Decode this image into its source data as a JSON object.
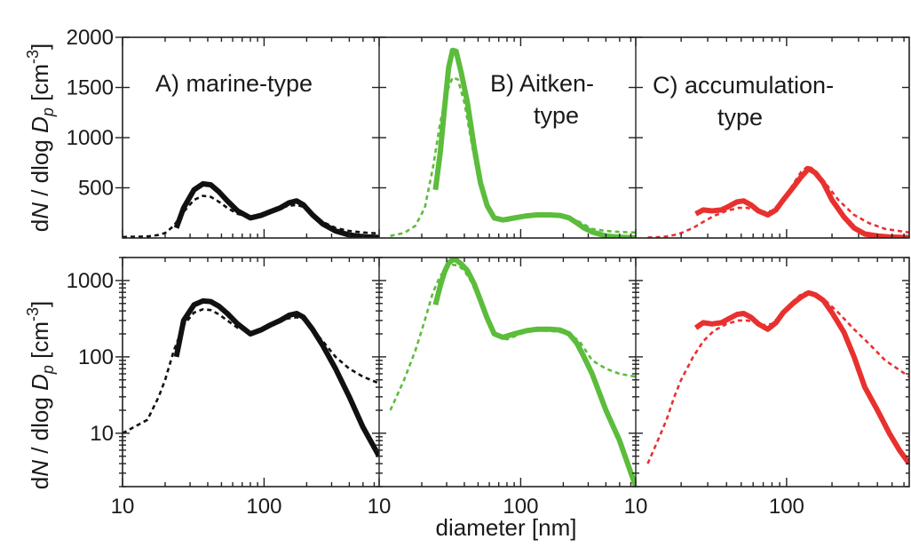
{
  "chart_data": [
    {
      "panel": "top",
      "type": "line",
      "x_scale": "log",
      "y_scale": "linear",
      "xlim": [
        10,
        650
      ],
      "ylim": [
        0,
        2000
      ],
      "yticks": [
        500,
        1000,
        1500,
        2000
      ],
      "ylabel": {
        "pre": "d",
        "N": "N",
        "mid": " / dlog ",
        "D": "D",
        "p": "p",
        "unit": " [cm",
        "exp": "-3",
        "close": "]"
      },
      "panels": [
        {
          "label_lines": [
            "A) marine-type"
          ],
          "color": "#111111",
          "series": [
            {
              "style": "dashed",
              "x": [
                10,
                15,
                18,
                20,
                23,
                27,
                32,
                37,
                42,
                48,
                55,
                65,
                80,
                95,
                110,
                130,
                150,
                170,
                190,
                220,
                260,
                320,
                400,
                500,
                650
              ],
              "y": [
                10,
                15,
                30,
                50,
                120,
                260,
                380,
                420,
                410,
                360,
                300,
                240,
                210,
                235,
                270,
                300,
                320,
                330,
                310,
                230,
                160,
                100,
                70,
                55,
                45
              ]
            },
            {
              "style": "solid",
              "x": [
                24,
                27,
                32,
                37,
                42,
                48,
                55,
                65,
                80,
                95,
                110,
                130,
                150,
                170,
                190,
                220,
                260,
                320,
                400,
                500,
                650
              ],
              "y": [
                100,
                300,
                480,
                540,
                530,
                460,
                370,
                270,
                200,
                225,
                260,
                300,
                350,
                370,
                330,
                230,
                140,
                70,
                30,
                12,
                5
              ]
            }
          ]
        },
        {
          "label_lines": [
            "B) Aitken-",
            "type"
          ],
          "color": "#5cbc3c",
          "series": [
            {
              "style": "dashed",
              "x": [
                12,
                15,
                18,
                21,
                24,
                27,
                30,
                33,
                36,
                40,
                45,
                50,
                55,
                60,
                70,
                80,
                100,
                120,
                150,
                180,
                220,
                260,
                320,
                400,
                500,
                650
              ],
              "y": [
                20,
                50,
                120,
                300,
                700,
                1150,
                1450,
                1600,
                1580,
                1350,
                950,
                600,
                400,
                260,
                180,
                170,
                200,
                220,
                220,
                215,
                200,
                160,
                90,
                70,
                60,
                55
              ]
            },
            {
              "style": "solid",
              "x": [
                25,
                27,
                29,
                31,
                33,
                35,
                38,
                42,
                47,
                52,
                58,
                65,
                75,
                90,
                110,
                130,
                160,
                190,
                220,
                250,
                280,
                320,
                400,
                500,
                650
              ],
              "y": [
                480,
                850,
                1300,
                1700,
                1870,
                1860,
                1650,
                1350,
                900,
                550,
                320,
                200,
                180,
                200,
                220,
                230,
                230,
                225,
                200,
                150,
                100,
                60,
                20,
                8,
                2
              ]
            }
          ]
        },
        {
          "label_lines": [
            "C) accumulation-",
            "type"
          ],
          "color": "#e8312f",
          "series": [
            {
              "style": "dashed",
              "x": [
                12,
                14,
                16,
                18,
                20,
                24,
                28,
                33,
                40,
                48,
                55,
                62,
                70,
                80,
                95,
                110,
                125,
                140,
                160,
                180,
                220,
                280,
                350,
                450,
                650
              ],
              "y": [
                4,
                8,
                15,
                30,
                50,
                100,
                160,
                220,
                270,
                300,
                300,
                280,
                260,
                270,
                380,
                530,
                660,
                720,
                650,
                550,
                380,
                230,
                150,
                90,
                55
              ]
            },
            {
              "style": "solid",
              "x": [
                25,
                28,
                32,
                37,
                42,
                47,
                52,
                58,
                65,
                75,
                85,
                95,
                110,
                125,
                140,
                155,
                175,
                200,
                240,
                280,
                330,
                400,
                480,
                560,
                650
              ],
              "y": [
                240,
                280,
                270,
                280,
                320,
                360,
                370,
                330,
                270,
                230,
                280,
                380,
                500,
                610,
                690,
                650,
                550,
                380,
                210,
                100,
                40,
                20,
                10,
                6,
                4
              ]
            }
          ]
        }
      ]
    },
    {
      "panel": "bottom",
      "type": "line",
      "x_scale": "log",
      "y_scale": "log",
      "xlim": [
        10,
        650
      ],
      "ylim": [
        2,
        2000
      ],
      "yticks": [
        10,
        100,
        1000
      ],
      "xticks": [
        10,
        100
      ],
      "xlabel": "diameter [nm]",
      "ylabel": {
        "pre": "d",
        "N": "N",
        "mid": " / dlog ",
        "D": "D",
        "p": "p",
        "unit": " [cm",
        "exp": "-3",
        "close": "]"
      },
      "note": "Same series as top panels plotted on logarithmic y-axis"
    }
  ]
}
